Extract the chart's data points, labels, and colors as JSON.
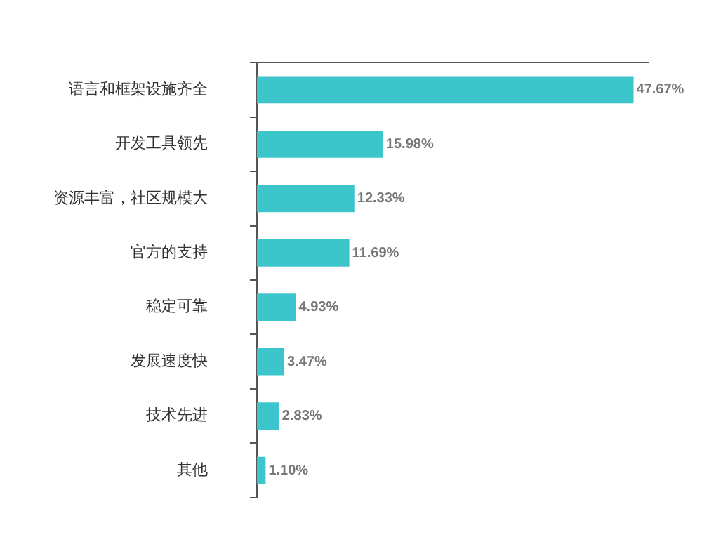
{
  "chart_data": {
    "type": "bar",
    "orientation": "horizontal",
    "categories": [
      "语言和框架设施齐全",
      "开发工具领先",
      "资源丰富，社区规模大",
      "官方的支持",
      "稳定可靠",
      "发展速度快",
      "技术先进",
      "其他"
    ],
    "values": [
      47.67,
      15.98,
      12.33,
      11.69,
      4.93,
      3.47,
      2.83,
      1.1
    ],
    "value_labels": [
      "47.67%",
      "15.98%",
      "12.33%",
      "11.69%",
      "4.93%",
      "3.47%",
      "2.83%",
      "1.10%"
    ],
    "color": "#3cc6cc",
    "tick_labels": "y"
  }
}
